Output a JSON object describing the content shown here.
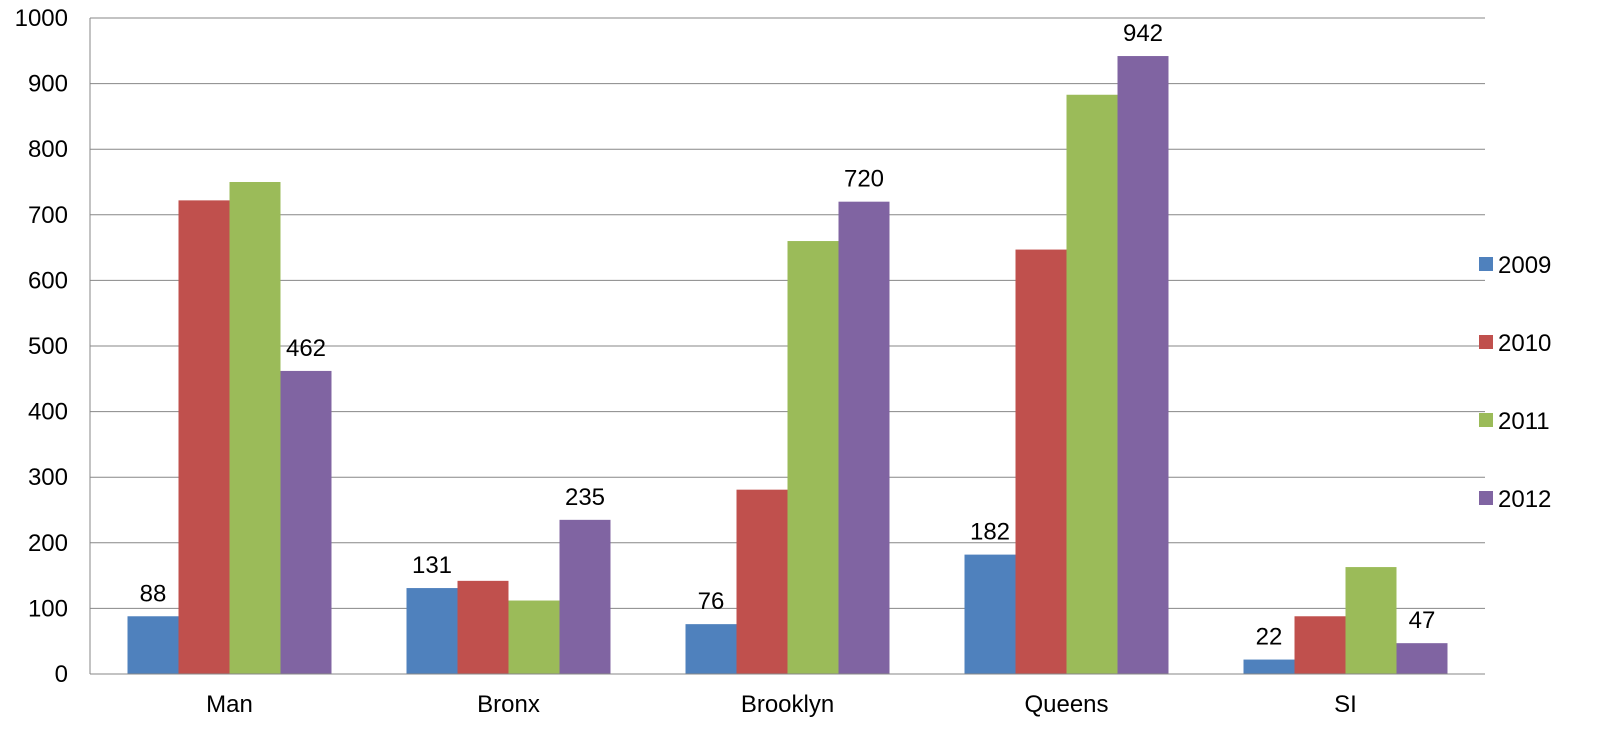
{
  "chart_data": {
    "type": "bar",
    "title": "",
    "xlabel": "",
    "ylabel": "",
    "ylim": [
      0,
      1000
    ],
    "yticks": [
      0,
      100,
      200,
      300,
      400,
      500,
      600,
      700,
      800,
      900,
      1000
    ],
    "grid": true,
    "legend_position": "right",
    "categories": [
      "Man",
      "Bronx",
      "Brooklyn",
      "Queens",
      "SI"
    ],
    "series": [
      {
        "name": "2009",
        "color": "#4F81BD",
        "values": [
          88,
          131,
          76,
          182,
          22
        ],
        "labels": [
          "88",
          "131",
          "76",
          "182",
          "22"
        ]
      },
      {
        "name": "2010",
        "color": "#C0504D",
        "values": [
          722,
          142,
          281,
          647,
          88
        ],
        "labels": [
          "",
          "",
          "",
          "",
          ""
        ]
      },
      {
        "name": "2011",
        "color": "#9BBB59",
        "values": [
          750,
          112,
          660,
          883,
          163
        ],
        "labels": [
          "",
          "",
          "",
          "",
          ""
        ]
      },
      {
        "name": "2012",
        "color": "#8064A2",
        "values": [
          462,
          235,
          720,
          942,
          47
        ],
        "labels": [
          "462",
          "235",
          "720",
          "942",
          "47"
        ]
      }
    ]
  }
}
